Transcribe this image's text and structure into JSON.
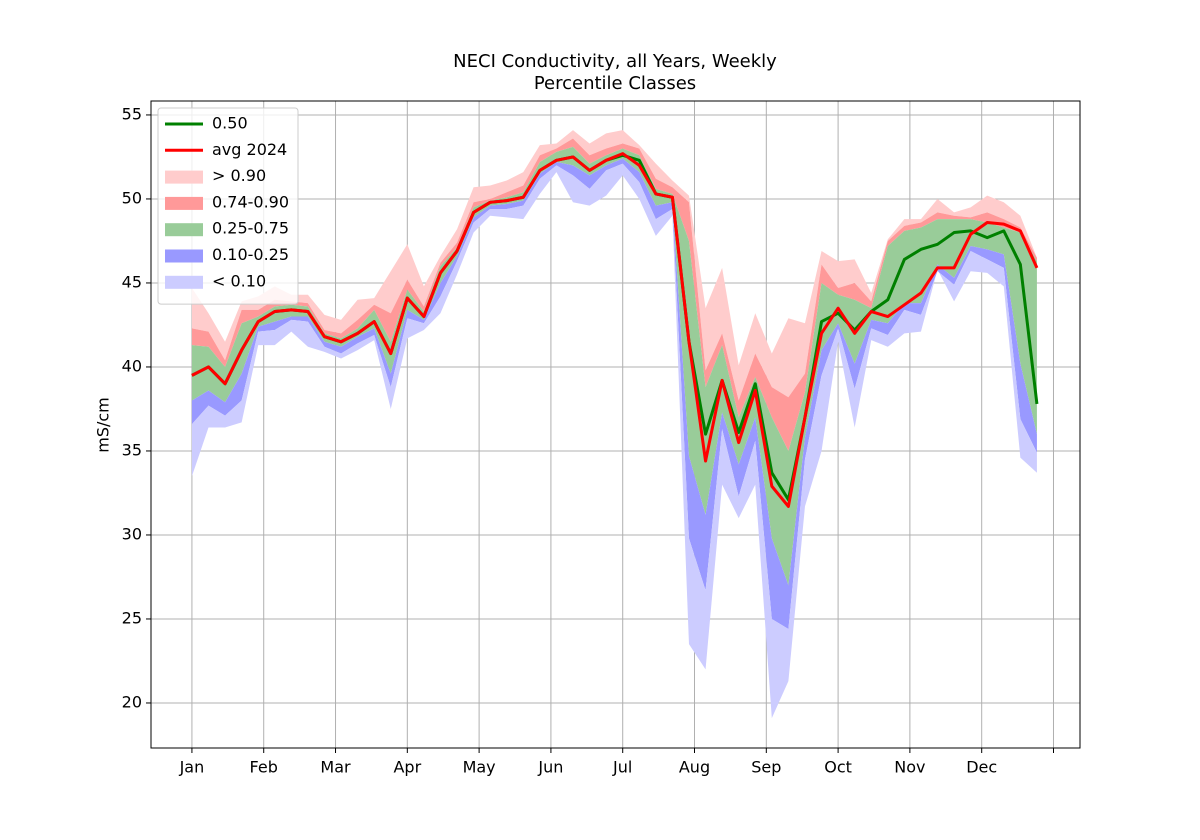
{
  "chart_data": {
    "type": "fan",
    "title": "NECI Conductivity, all Years, Weekly",
    "subtitle": "Percentile Classes",
    "y_label": "mS/cm",
    "x": [
      0,
      1,
      2,
      3,
      4,
      5,
      6,
      7,
      8,
      9,
      10,
      11,
      12,
      13,
      14,
      15,
      16,
      17,
      18,
      19,
      20,
      21,
      22,
      23,
      24,
      25,
      26,
      27,
      28,
      29,
      30,
      31,
      32,
      33,
      34,
      35,
      36,
      37,
      38,
      39,
      40,
      41,
      42,
      43,
      44,
      45,
      46,
      47,
      48,
      49,
      50,
      51
    ],
    "xlim": [
      -2.47,
      53.6
    ],
    "xticks": [
      {
        "value": 0,
        "label": "Jan"
      },
      {
        "value": 4.333,
        "label": "Feb"
      },
      {
        "value": 8.667,
        "label": "Mar"
      },
      {
        "value": 13,
        "label": "Apr"
      },
      {
        "value": 17.333,
        "label": "May"
      },
      {
        "value": 21.667,
        "label": "Jun"
      },
      {
        "value": 26,
        "label": "Jul"
      },
      {
        "value": 30.333,
        "label": "Aug"
      },
      {
        "value": 34.667,
        "label": "Sep"
      },
      {
        "value": 39,
        "label": "Oct"
      },
      {
        "value": 43.333,
        "label": "Nov"
      },
      {
        "value": 47.667,
        "label": "Dec"
      },
      {
        "value": 52,
        "label": null
      }
    ],
    "ylim": [
      17.32,
      55.83
    ],
    "yticks": [
      20,
      25,
      30,
      35,
      40,
      45,
      50,
      55
    ],
    "grid": true,
    "legend": "upper left",
    "series": [
      {
        "name": "0.50",
        "color": "#008000",
        "values": [
          39.5,
          40.0,
          39.0,
          41.0,
          42.7,
          43.3,
          43.4,
          43.3,
          41.8,
          41.5,
          42.0,
          42.7,
          40.8,
          44.1,
          43.0,
          45.6,
          46.9,
          49.2,
          49.8,
          49.9,
          50.1,
          51.7,
          52.3,
          52.5,
          51.7,
          52.3,
          52.6,
          52.3,
          50.3,
          50.1,
          41.5,
          36.0,
          39.2,
          36.1,
          39.0,
          33.7,
          32.1,
          37.0,
          42.7,
          43.2,
          42.2,
          43.3,
          44.0,
          46.4,
          47.0,
          47.3,
          48.0,
          48.1,
          47.7,
          48.1,
          46.1,
          37.8
        ]
      },
      {
        "name": "avg 2024",
        "color": "#ff0000",
        "values": [
          39.5,
          40.0,
          39.0,
          41.0,
          42.7,
          43.3,
          43.4,
          43.3,
          41.8,
          41.5,
          42.0,
          42.7,
          40.8,
          44.1,
          43.0,
          45.6,
          46.9,
          49.2,
          49.8,
          49.9,
          50.1,
          51.7,
          52.3,
          52.5,
          51.7,
          52.3,
          52.7,
          52.0,
          50.3,
          50.1,
          41.5,
          34.4,
          39.2,
          35.5,
          38.6,
          32.9,
          31.7,
          37.0,
          42.0,
          43.5,
          42.0,
          43.3,
          43.0,
          43.7,
          44.4,
          45.9,
          45.9,
          47.9,
          48.6,
          48.5,
          48.1,
          45.9
        ]
      }
    ],
    "bands": [
      {
        "name": "> 0.90",
        "color": "#ffcccc"
      },
      {
        "name": "0.74-0.90",
        "color": "#ff9999"
      },
      {
        "name": "0.25-0.75",
        "color": "#99cc99"
      },
      {
        "name": "0.10-0.25",
        "color": "#9999ff"
      },
      {
        "name": "< 0.10",
        "color": "#ccccff"
      }
    ],
    "band_edges": [
      [
        44.7,
        43.2,
        41.5,
        43.9,
        44.2,
        44.8,
        44.3,
        44.3,
        43.1,
        42.8,
        44.0,
        44.1,
        45.7,
        47.3,
        44.8,
        46.6,
        48.2,
        50.7,
        50.8,
        51.1,
        51.6,
        53.2,
        53.3,
        54.1,
        53.3,
        53.9,
        54.1,
        53.2,
        52.1,
        51.1,
        50.2,
        43.5,
        45.9,
        40.1,
        43.2,
        40.8,
        42.9,
        42.6,
        46.9,
        46.3,
        46.4,
        44.4,
        47.6,
        48.8,
        48.8,
        50.0,
        49.2,
        49.5,
        50.2,
        49.8,
        49.0,
        46.5
      ],
      [
        42.3,
        42.1,
        40.4,
        43.4,
        43.4,
        44.0,
        43.9,
        43.8,
        42.2,
        42.0,
        42.8,
        43.7,
        43.2,
        45.2,
        43.6,
        46.2,
        47.4,
        49.8,
        50.0,
        50.4,
        50.8,
        52.6,
        53.0,
        53.6,
        52.6,
        53.0,
        53.3,
        53.0,
        51.2,
        50.7,
        49.8,
        39.8,
        42.0,
        38.0,
        40.8,
        38.8,
        38.2,
        39.6,
        46.1,
        44.7,
        45.0,
        43.9,
        47.5,
        48.4,
        48.6,
        49.2,
        49.0,
        48.9,
        49.2,
        48.8,
        48.3,
        46.5
      ],
      [
        41.3,
        41.2,
        40.0,
        42.6,
        43.0,
        43.6,
        43.7,
        43.6,
        42.0,
        41.7,
        42.3,
        43.4,
        41.5,
        44.6,
        43.3,
        46.0,
        47.1,
        49.5,
        49.9,
        50.1,
        50.4,
        52.2,
        52.8,
        53.1,
        52.1,
        52.6,
        53.0,
        52.6,
        50.6,
        50.3,
        47.5,
        38.8,
        41.3,
        37.0,
        39.4,
        37.0,
        35.0,
        38.5,
        45.0,
        44.3,
        44.0,
        43.5,
        47.2,
        48.1,
        48.3,
        48.8,
        48.8,
        48.8,
        48.6,
        48.3,
        48.0,
        46.3
      ],
      [
        38.0,
        38.6,
        37.9,
        39.6,
        42.4,
        42.7,
        43.0,
        43.0,
        41.5,
        41.2,
        41.8,
        42.3,
        39.6,
        43.4,
        42.8,
        45.0,
        46.6,
        48.9,
        49.6,
        49.7,
        49.9,
        51.5,
        52.2,
        52.0,
        51.4,
        52.0,
        52.4,
        51.6,
        49.6,
        49.8,
        34.7,
        31.2,
        37.3,
        34.2,
        37.0,
        29.8,
        27.0,
        35.8,
        41.0,
        42.6,
        40.2,
        42.8,
        42.6,
        43.8,
        43.8,
        46.1,
        45.3,
        47.2,
        47.0,
        46.7,
        40.2,
        36.0
      ],
      [
        36.6,
        37.7,
        37.1,
        38.0,
        42.1,
        42.2,
        42.8,
        42.7,
        41.2,
        40.8,
        41.4,
        41.9,
        38.8,
        42.9,
        42.6,
        44.2,
        46.3,
        48.6,
        49.4,
        49.4,
        49.6,
        51.2,
        52.0,
        51.4,
        50.6,
        51.7,
        52.1,
        51.0,
        48.8,
        49.4,
        29.8,
        26.7,
        36.3,
        32.3,
        35.6,
        25.0,
        24.4,
        34.5,
        39.5,
        42.3,
        38.7,
        42.3,
        41.9,
        43.4,
        43.1,
        45.7,
        44.9,
        46.9,
        46.4,
        45.9,
        36.9,
        34.9
      ],
      [
        33.5,
        36.4,
        36.4,
        36.7,
        41.3,
        41.3,
        42.1,
        41.2,
        40.9,
        40.5,
        41.0,
        41.6,
        37.5,
        41.7,
        42.2,
        43.2,
        45.5,
        48.0,
        49.0,
        48.9,
        48.8,
        50.3,
        51.6,
        49.8,
        49.6,
        50.2,
        51.4,
        50.0,
        47.8,
        49.0,
        23.5,
        22.0,
        33.0,
        31.0,
        33.0,
        19.1,
        21.3,
        31.7,
        35.0,
        41.5,
        36.4,
        41.6,
        41.2,
        42.0,
        42.1,
        45.8,
        43.9,
        45.7,
        45.6,
        44.8,
        34.6,
        33.7
      ]
    ]
  }
}
